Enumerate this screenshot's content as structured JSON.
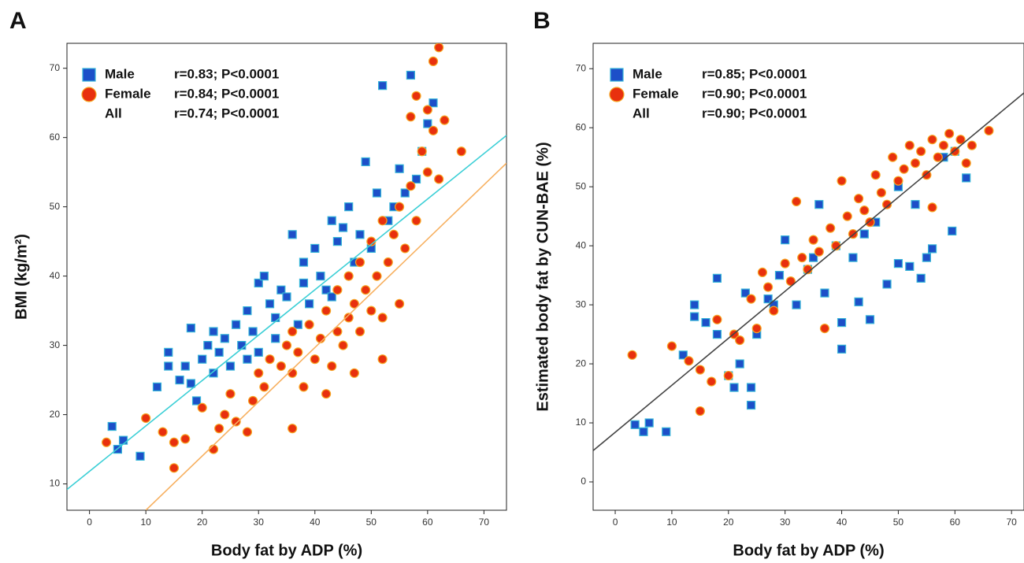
{
  "chart_data": [
    {
      "type": "scatter",
      "panel": "A",
      "xlabel": "Body fat by ADP (%)",
      "ylabel": "BMI (kg/m²)",
      "xlim": [
        -4,
        74
      ],
      "ylim": [
        6.2,
        73.6
      ],
      "xticks": [
        0,
        10,
        20,
        30,
        40,
        50,
        60,
        70
      ],
      "yticks": [
        10,
        20,
        30,
        40,
        50,
        60,
        70
      ],
      "all_label": "All",
      "stats": [
        "r=0.83; P<0.0001",
        "r=0.84; P<0.0001",
        "r=0.74; P<0.0001"
      ],
      "series": [
        {
          "name": "Male",
          "color": "#1d4fc8",
          "edge_color": "#35b4d8",
          "marker": "square",
          "x": [
            4,
            5,
            6,
            9,
            12,
            14,
            14,
            16,
            17,
            18,
            18,
            19,
            20,
            21,
            22,
            22,
            23,
            24,
            25,
            26,
            27,
            28,
            29,
            30,
            30,
            31,
            32,
            33,
            34,
            35,
            36,
            37,
            38,
            39,
            40,
            41,
            42,
            43,
            44,
            45,
            46,
            47,
            48,
            49,
            50,
            51,
            52,
            53,
            54,
            55,
            56,
            57,
            58,
            59,
            60,
            61,
            43,
            38,
            33,
            28
          ],
          "values": [
            18.3,
            15,
            16.3,
            14,
            24,
            29,
            27,
            25,
            27,
            24.5,
            32.5,
            22,
            28,
            30,
            26,
            32,
            29,
            31,
            27,
            33,
            30,
            35,
            32,
            39,
            29,
            40,
            36,
            34,
            38,
            37,
            46,
            33,
            42,
            36,
            44,
            40,
            38,
            48,
            45,
            47,
            50,
            42,
            46,
            56.5,
            44,
            52,
            67.5,
            48,
            50,
            55.5,
            52,
            69,
            54,
            58,
            62,
            65,
            37,
            39,
            31,
            28
          ]
        },
        {
          "name": "Female",
          "color": "#e8300e",
          "edge_color": "#f6a623",
          "marker": "circle",
          "x": [
            3,
            10,
            13,
            15,
            15,
            17,
            20,
            22,
            23,
            24,
            25,
            26,
            28,
            29,
            30,
            31,
            32,
            34,
            35,
            36,
            36,
            37,
            38,
            39,
            40,
            41,
            42,
            43,
            44,
            44,
            45,
            46,
            46,
            47,
            48,
            48,
            49,
            50,
            50,
            51,
            52,
            52,
            53,
            54,
            55,
            55,
            56,
            57,
            57,
            58,
            58,
            59,
            60,
            60,
            61,
            61,
            62,
            62,
            63,
            66,
            52,
            47,
            42,
            36
          ],
          "values": [
            16,
            19.5,
            17.5,
            12.3,
            16,
            16.5,
            21,
            15,
            18,
            20,
            23,
            19,
            17.5,
            22,
            26,
            24,
            28,
            27,
            30,
            18,
            26,
            29,
            24,
            33,
            28,
            31,
            35,
            27,
            38,
            32,
            30,
            40,
            34,
            36,
            42,
            32,
            38,
            45,
            35,
            40,
            48,
            34,
            42,
            46,
            36,
            50,
            44,
            53,
            63,
            66,
            48,
            58,
            64,
            55,
            71,
            61,
            73,
            54,
            62.5,
            58,
            28,
            26,
            23,
            32
          ]
        }
      ],
      "fit_lines": [
        {
          "color": "#3ccfd6",
          "x": [
            -4,
            74
          ],
          "values": [
            9.2,
            60.3
          ]
        },
        {
          "color": "#f7b060",
          "x": [
            10,
            74
          ],
          "values": [
            6.2,
            56.3
          ]
        }
      ]
    },
    {
      "type": "scatter",
      "panel": "B",
      "xlabel": "Body fat by ADP (%)",
      "ylabel": "Estimated body fat by CUN-BAE (%)",
      "xlim": [
        -3.9,
        72.2
      ],
      "ylim": [
        -4.8,
        74.3
      ],
      "xticks": [
        0,
        10,
        20,
        30,
        40,
        50,
        60,
        70
      ],
      "yticks": [
        0,
        10,
        20,
        30,
        40,
        50,
        60,
        70
      ],
      "all_label": "All",
      "stats": [
        "r=0.85; P<0.0001",
        "r=0.90; P<0.0001",
        "r=0.90; P<0.0001"
      ],
      "series": [
        {
          "name": "Male",
          "color": "#1d4fc8",
          "edge_color": "#35b4d8",
          "marker": "square",
          "x": [
            3.5,
            5,
            6,
            9,
            12,
            14,
            14,
            16,
            18,
            18,
            20,
            21,
            22,
            23,
            24,
            24,
            25,
            27,
            29,
            30,
            32,
            34,
            36,
            37,
            39,
            40,
            40,
            42,
            43,
            45,
            46,
            48,
            50,
            52,
            53,
            54,
            55,
            56,
            58,
            59.5,
            60,
            62,
            35,
            44,
            50,
            28
          ],
          "values": [
            9.7,
            8.5,
            10,
            8.5,
            21.5,
            30,
            28,
            27,
            25,
            34.5,
            18,
            16,
            20,
            32,
            13,
            16,
            25,
            31,
            35,
            41,
            30,
            36,
            47,
            32,
            40,
            22.5,
            27,
            38,
            30.5,
            27.5,
            44,
            33.5,
            37,
            36.5,
            47,
            34.5,
            38,
            39.5,
            55,
            42.5,
            56,
            51.5,
            38,
            42,
            50,
            30
          ]
        },
        {
          "name": "Female",
          "color": "#e8300e",
          "edge_color": "#f6a623",
          "marker": "circle",
          "x": [
            3,
            10,
            13,
            15,
            15,
            17,
            18,
            20,
            21,
            22,
            24,
            25,
            26,
            27,
            28,
            30,
            31,
            32,
            33,
            34,
            35,
            36,
            37,
            38,
            39,
            40,
            41,
            42,
            43,
            44,
            45,
            46,
            47,
            48,
            49,
            50,
            51,
            52,
            53,
            54,
            55,
            56,
            57,
            58,
            59,
            60,
            61,
            62,
            63,
            66,
            56
          ],
          "values": [
            21.5,
            23,
            20.5,
            12,
            19,
            17,
            27.5,
            18,
            25,
            24,
            31,
            26,
            35.5,
            33,
            29,
            37,
            34,
            47.5,
            38,
            36,
            41,
            39,
            26,
            43,
            40,
            51,
            45,
            42,
            48,
            46,
            44,
            52,
            49,
            47,
            55,
            51,
            53,
            57,
            54,
            56,
            52,
            58,
            55,
            57,
            59,
            56,
            58,
            54,
            57,
            59.5,
            46.5
          ]
        }
      ],
      "fit_lines": [
        {
          "color": "#444444",
          "x": [
            -3.9,
            72.2
          ],
          "values": [
            5.3,
            65.9
          ]
        }
      ]
    }
  ]
}
